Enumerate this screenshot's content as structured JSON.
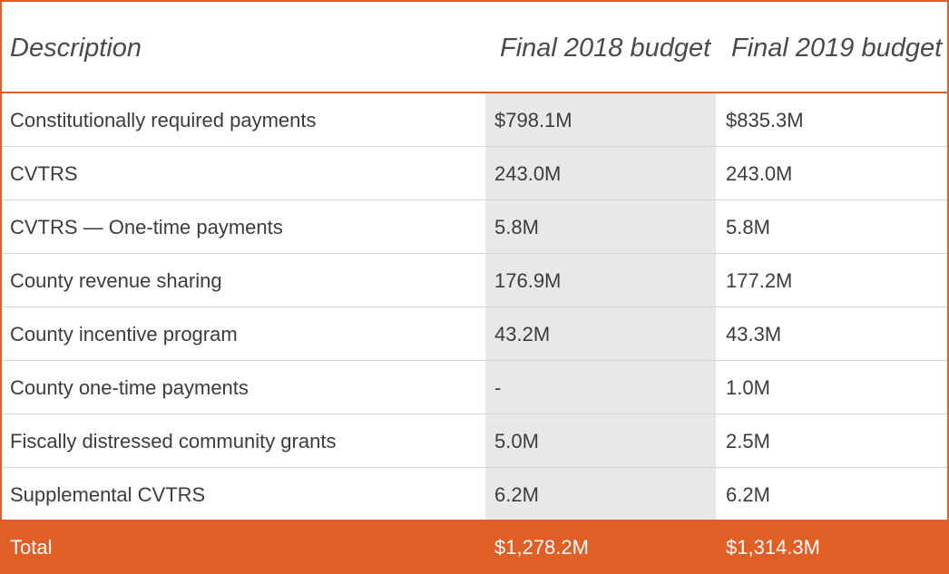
{
  "table": {
    "headers": {
      "description": "Description",
      "budget_2018": "Final 2018 budget",
      "budget_2019": "Final 2019 budget"
    },
    "rows": [
      {
        "description": "Constitutionally required payments",
        "budget_2018": "$798.1M",
        "budget_2019": "$835.3M"
      },
      {
        "description": "CVTRS",
        "budget_2018": "243.0M",
        "budget_2019": "243.0M"
      },
      {
        "description": "CVTRS — One-time payments",
        "budget_2018": "5.8M",
        "budget_2019": "5.8M"
      },
      {
        "description": "County revenue sharing",
        "budget_2018": "176.9M",
        "budget_2019": "177.2M"
      },
      {
        "description": "County incentive program",
        "budget_2018": "43.2M",
        "budget_2019": "43.3M"
      },
      {
        "description": "County one-time payments",
        "budget_2018": "-",
        "budget_2019": "1.0M"
      },
      {
        "description": "Fiscally distressed community grants",
        "budget_2018": "5.0M",
        "budget_2019": "2.5M"
      },
      {
        "description": "Supplemental CVTRS",
        "budget_2018": "6.2M",
        "budget_2019": "6.2M"
      }
    ],
    "total": {
      "description": "Total",
      "budget_2018": "$1,278.2M",
      "budget_2019": "$1,314.3M"
    }
  },
  "colors": {
    "accent": "#df5f26",
    "column_shade": "#e8e8e8",
    "row_divider": "#d4d4d4"
  }
}
